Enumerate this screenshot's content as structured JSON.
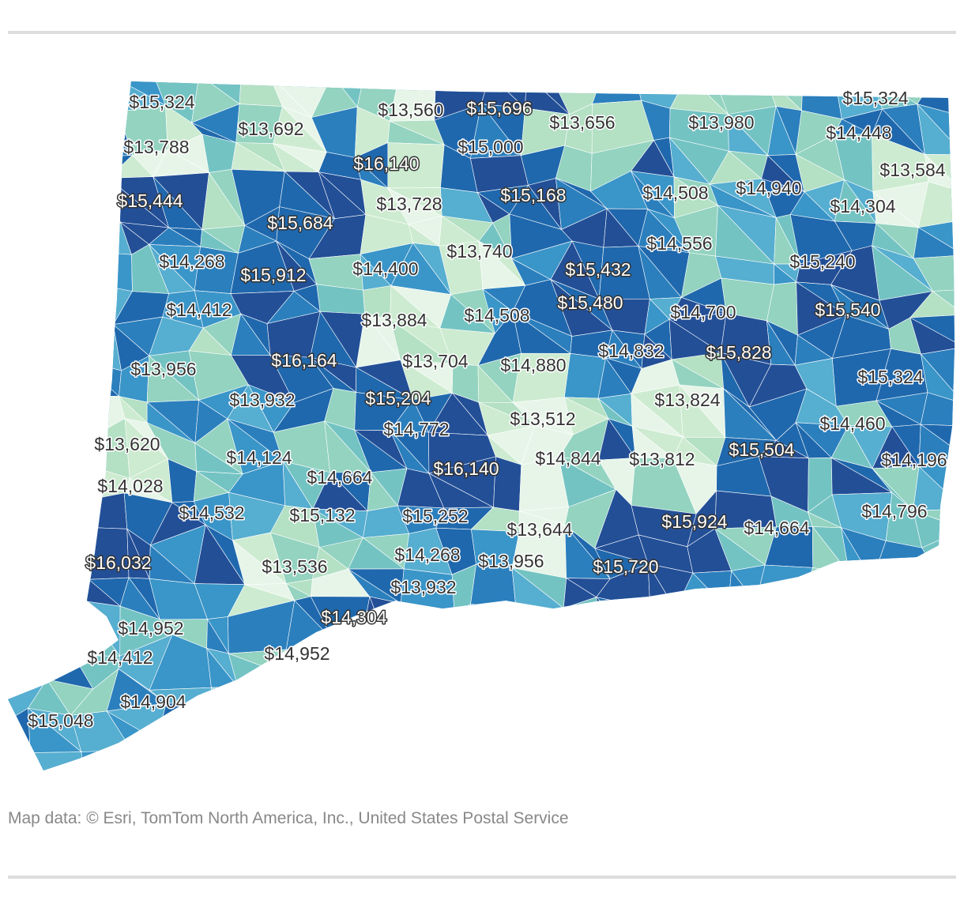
{
  "map": {
    "attribution": "Map data: © Esri, TomTom North America, Inc., United States Postal Service",
    "palette": [
      "#e6f5e8",
      "#cdebd0",
      "#b4e0c4",
      "#93d3c0",
      "#74c3c3",
      "#56aed0",
      "#3a95c8",
      "#2b7fbd",
      "#1f68ad",
      "#234f97"
    ],
    "boundary_color": "#ffffff",
    "labels": [
      {
        "text": "$15,324",
        "tone": "light"
      },
      {
        "text": "$13,692",
        "tone": "light"
      },
      {
        "text": "$13,560",
        "tone": "light"
      },
      {
        "text": "$15,696",
        "tone": "dark"
      },
      {
        "text": "$13,656",
        "tone": "light"
      },
      {
        "text": "$13,980",
        "tone": "light"
      },
      {
        "text": "$15,324",
        "tone": "light"
      },
      {
        "text": "$13,788",
        "tone": "light"
      },
      {
        "text": "$16,140",
        "tone": "dark"
      },
      {
        "text": "$15,000",
        "tone": "light"
      },
      {
        "text": "$14,448",
        "tone": "light"
      },
      {
        "text": "$13,584",
        "tone": "light"
      },
      {
        "text": "$15,444",
        "tone": "dark"
      },
      {
        "text": "$13,728",
        "tone": "light"
      },
      {
        "text": "$15,168",
        "tone": "dark"
      },
      {
        "text": "$14,508",
        "tone": "light"
      },
      {
        "text": "$14,940",
        "tone": "light"
      },
      {
        "text": "$14,304",
        "tone": "light"
      },
      {
        "text": "$15,684",
        "tone": "dark"
      },
      {
        "text": "$13,740",
        "tone": "light"
      },
      {
        "text": "$14,556",
        "tone": "light"
      },
      {
        "text": "$14,268",
        "tone": "light"
      },
      {
        "text": "$15,912",
        "tone": "dark"
      },
      {
        "text": "$14,400",
        "tone": "light"
      },
      {
        "text": "$15,432",
        "tone": "dark"
      },
      {
        "text": "$15,240",
        "tone": "light"
      },
      {
        "text": "$14,412",
        "tone": "light"
      },
      {
        "text": "$13,884",
        "tone": "light"
      },
      {
        "text": "$14,508",
        "tone": "light"
      },
      {
        "text": "$15,480",
        "tone": "dark"
      },
      {
        "text": "$14,700",
        "tone": "light"
      },
      {
        "text": "$15,540",
        "tone": "dark"
      },
      {
        "text": "$16,164",
        "tone": "dark"
      },
      {
        "text": "$13,704",
        "tone": "light"
      },
      {
        "text": "$14,880",
        "tone": "light"
      },
      {
        "text": "$14,832",
        "tone": "light"
      },
      {
        "text": "$15,828",
        "tone": "dark"
      },
      {
        "text": "$13,956",
        "tone": "light"
      },
      {
        "text": "$15,324",
        "tone": "light"
      },
      {
        "text": "$13,932",
        "tone": "light"
      },
      {
        "text": "$15,204",
        "tone": "dark"
      },
      {
        "text": "$13,512",
        "tone": "light"
      },
      {
        "text": "$13,824",
        "tone": "light"
      },
      {
        "text": "$14,772",
        "tone": "light"
      },
      {
        "text": "$14,460",
        "tone": "light"
      },
      {
        "text": "$13,620",
        "tone": "light"
      },
      {
        "text": "$14,124",
        "tone": "light"
      },
      {
        "text": "$16,140",
        "tone": "dark"
      },
      {
        "text": "$14,844",
        "tone": "light"
      },
      {
        "text": "$13,812",
        "tone": "light"
      },
      {
        "text": "$15,504",
        "tone": "dark"
      },
      {
        "text": "$14,196",
        "tone": "light"
      },
      {
        "text": "$14,028",
        "tone": "light"
      },
      {
        "text": "$14,664",
        "tone": "light"
      },
      {
        "text": "$14,532",
        "tone": "light"
      },
      {
        "text": "$15,132",
        "tone": "light"
      },
      {
        "text": "$15,252",
        "tone": "light"
      },
      {
        "text": "$14,796",
        "tone": "light"
      },
      {
        "text": "$13,644",
        "tone": "light"
      },
      {
        "text": "$15,924",
        "tone": "dark"
      },
      {
        "text": "$14,664",
        "tone": "light"
      },
      {
        "text": "$16,032",
        "tone": "dark"
      },
      {
        "text": "$13,536",
        "tone": "light"
      },
      {
        "text": "$14,268",
        "tone": "light"
      },
      {
        "text": "$13,956",
        "tone": "light"
      },
      {
        "text": "$15,720",
        "tone": "dark"
      },
      {
        "text": "$13,932",
        "tone": "light"
      },
      {
        "text": "$14,304",
        "tone": "dark"
      },
      {
        "text": "$14,952",
        "tone": "light"
      },
      {
        "text": "$14,412",
        "tone": "light"
      },
      {
        "text": "$14,952",
        "tone": "light"
      },
      {
        "text": "$14,904",
        "tone": "light"
      },
      {
        "text": "$15,048",
        "tone": "light"
      }
    ]
  }
}
